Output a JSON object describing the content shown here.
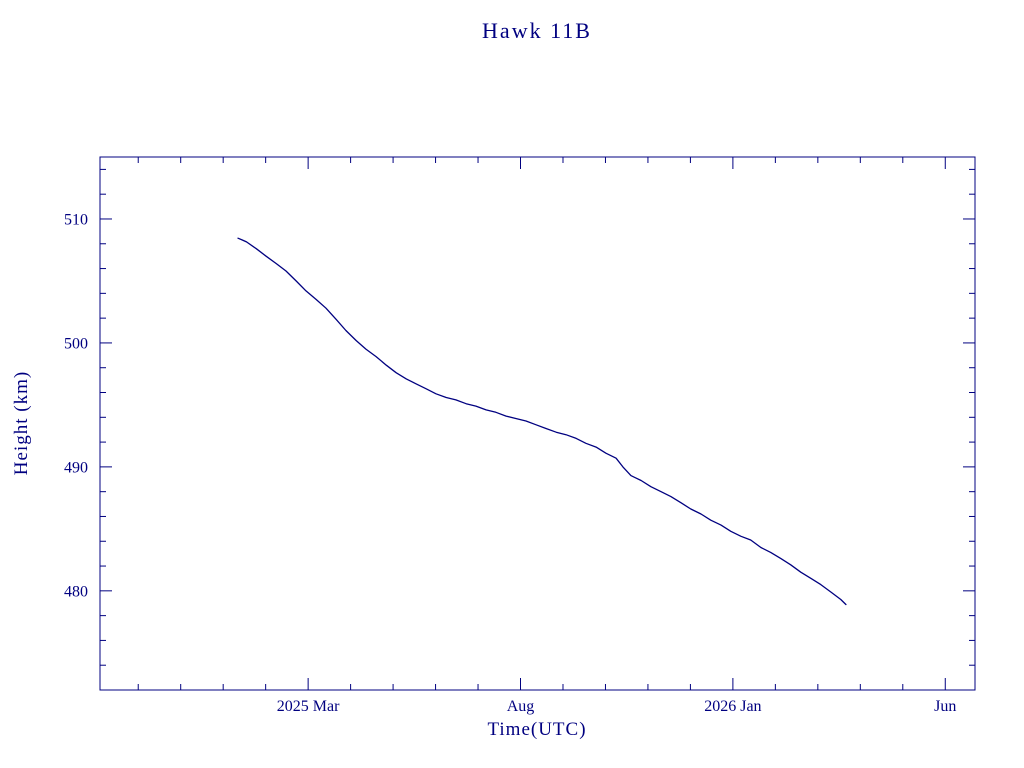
{
  "page": {
    "background": "#ffffff",
    "accent": "#000080"
  },
  "chart_data": {
    "type": "line",
    "title": "Hawk 11B",
    "xlabel": "Time(UTC)",
    "ylabel": "Height (km)",
    "x_units": "months since 2025-01-01",
    "xlim": [
      -2.9,
      17.7
    ],
    "ylim": [
      472,
      515
    ],
    "grid": false,
    "legend": "none",
    "line_color": "#000080",
    "x_major_ticks": [
      {
        "value": 2,
        "label": "2025 Mar"
      },
      {
        "value": 7,
        "label": "Aug"
      },
      {
        "value": 12,
        "label": "2026 Jan"
      },
      {
        "value": 17,
        "label": "Jun"
      }
    ],
    "x_minor_tick_interval": 1,
    "y_major_ticks": [
      {
        "value": 480,
        "label": "480"
      },
      {
        "value": 490,
        "label": "490"
      },
      {
        "value": 500,
        "label": "500"
      },
      {
        "value": 510,
        "label": "510"
      }
    ],
    "y_minor_tick_interval": 2,
    "series": [
      {
        "name": "Hawk 11B height",
        "points": [
          [
            0.35,
            508.45
          ],
          [
            0.45,
            508.3
          ],
          [
            0.55,
            508.15
          ],
          [
            0.78,
            507.6
          ],
          [
            1.01,
            507.0
          ],
          [
            1.25,
            506.4
          ],
          [
            1.48,
            505.8
          ],
          [
            1.72,
            505.0
          ],
          [
            1.95,
            504.2
          ],
          [
            2.19,
            503.5
          ],
          [
            2.42,
            502.8
          ],
          [
            2.66,
            501.9
          ],
          [
            2.89,
            501.0
          ],
          [
            3.13,
            500.2
          ],
          [
            3.36,
            499.5
          ],
          [
            3.6,
            498.9
          ],
          [
            3.84,
            498.2
          ],
          [
            4.07,
            497.6
          ],
          [
            4.31,
            497.1
          ],
          [
            4.54,
            496.7
          ],
          [
            4.78,
            496.3
          ],
          [
            5.01,
            495.9
          ],
          [
            5.25,
            495.6
          ],
          [
            5.48,
            495.4
          ],
          [
            5.72,
            495.1
          ],
          [
            5.95,
            494.9
          ],
          [
            6.19,
            494.6
          ],
          [
            6.42,
            494.4
          ],
          [
            6.66,
            494.1
          ],
          [
            6.89,
            493.9
          ],
          [
            7.13,
            493.7
          ],
          [
            7.36,
            493.4
          ],
          [
            7.6,
            493.1
          ],
          [
            7.84,
            492.8
          ],
          [
            8.07,
            492.6
          ],
          [
            8.31,
            492.3
          ],
          [
            8.54,
            491.9
          ],
          [
            8.78,
            491.6
          ],
          [
            9.01,
            491.1
          ],
          [
            9.25,
            490.7
          ],
          [
            9.41,
            490.0
          ],
          [
            9.6,
            489.3
          ],
          [
            9.84,
            488.9
          ],
          [
            10.07,
            488.4
          ],
          [
            10.31,
            488.0
          ],
          [
            10.54,
            487.6
          ],
          [
            10.78,
            487.1
          ],
          [
            11.01,
            486.6
          ],
          [
            11.25,
            486.2
          ],
          [
            11.48,
            485.7
          ],
          [
            11.72,
            485.3
          ],
          [
            11.95,
            484.8
          ],
          [
            12.19,
            484.4
          ],
          [
            12.42,
            484.1
          ],
          [
            12.66,
            483.5
          ],
          [
            12.89,
            483.1
          ],
          [
            13.13,
            482.6
          ],
          [
            13.36,
            482.1
          ],
          [
            13.6,
            481.5
          ],
          [
            13.84,
            481.0
          ],
          [
            14.07,
            480.5
          ],
          [
            14.31,
            479.9
          ],
          [
            14.54,
            479.3
          ],
          [
            14.66,
            478.9
          ]
        ]
      }
    ]
  }
}
